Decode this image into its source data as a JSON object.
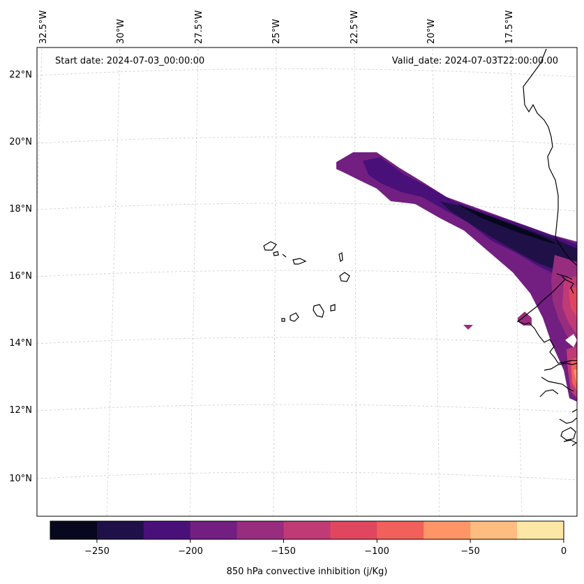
{
  "header": {
    "start_date": "Start date: 2024-07-03_00:00:00",
    "valid_date": "Valid_date: 2024-07-03T22:00:00.00"
  },
  "map": {
    "lon_labels": [
      "32.5°W",
      "30°W",
      "27.5°W",
      "25°W",
      "22.5°W",
      "20°W",
      "17.5°W"
    ],
    "lat_labels": [
      "22°N",
      "20°N",
      "18°N",
      "16°N",
      "14°N",
      "12°N",
      "10°N"
    ],
    "gridlines": "dashed light gray",
    "coastline_color": "#000000"
  },
  "colorbar": {
    "label": "850 hPa convective inhibition (j/Kg)",
    "ticks": [
      "−250",
      "−200",
      "−150",
      "−100",
      "−50",
      "0"
    ],
    "colors": [
      "#07071d",
      "#1f1147",
      "#4a1079",
      "#721f81",
      "#982d80",
      "#c03a76",
      "#e0475f",
      "#f2605b",
      "#fd9567",
      "#febc80",
      "#fde7a6"
    ]
  },
  "chart_data": {
    "type": "heatmap",
    "xlabel": "",
    "ylabel": "",
    "colorbar_label": "850 hPa convective inhibition (j/Kg)",
    "colorbar_range": [
      -275,
      0
    ],
    "levels": [
      -275,
      -250,
      -225,
      -200,
      -175,
      -150,
      -125,
      -100,
      -75,
      -50,
      -25,
      0
    ],
    "lon_range": [
      -33,
      -16.5
    ],
    "lat_range": [
      9,
      22.8
    ]
  }
}
